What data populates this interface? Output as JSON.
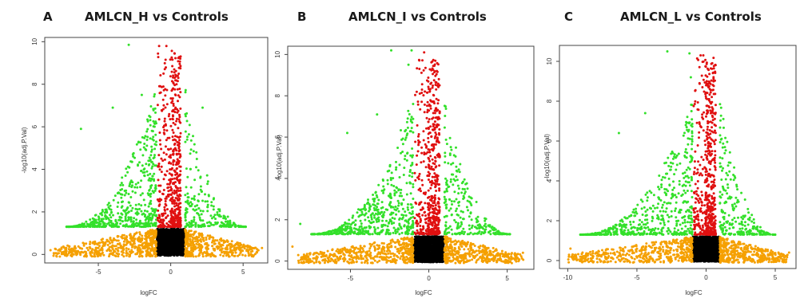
{
  "chart_data": [
    {
      "type": "scatter",
      "panel_letter": "A",
      "title": "AMLCN_H vs Controls",
      "xlabel": "logFC",
      "ylabel": "-log10(adj.P.Val)",
      "xlim": [
        -8.7,
        6.7
      ],
      "ylim": [
        -0.4,
        10.2
      ],
      "xticks": [
        -5,
        0,
        5
      ],
      "yticks": [
        0,
        2,
        4,
        6,
        8,
        10
      ],
      "grid": false,
      "legend": "none",
      "colors": {
        "black": "#000000",
        "orange": "#f5a000",
        "green": "#33e02a",
        "red": "#e01010"
      },
      "thresholds": {
        "logfc": 1,
        "neglog10p": 1.3
      },
      "sample_points": [
        [
          -2.9,
          9.85
        ],
        [
          -0.8,
          9.8
        ],
        [
          -0.3,
          9.8
        ],
        [
          -6.2,
          5.9
        ],
        [
          2.2,
          6.9
        ],
        [
          -4.0,
          6.9
        ],
        [
          -8.3,
          0.2
        ],
        [
          6.3,
          0.3
        ],
        [
          -2.0,
          7.5
        ],
        [
          -0.5,
          8.5
        ]
      ]
    },
    {
      "type": "scatter",
      "panel_letter": "B",
      "title": "AMLCN_I vs Controls",
      "xlabel": "logFC",
      "ylabel": "-log10(adj.P.Val)",
      "xlim": [
        -9.0,
        6.7
      ],
      "ylim": [
        -0.4,
        10.4
      ],
      "xticks": [
        -5,
        0,
        5
      ],
      "yticks": [
        0,
        2,
        4,
        6,
        8,
        10
      ],
      "grid": false,
      "legend": "none",
      "colors": {
        "black": "#000000",
        "orange": "#f5a000",
        "green": "#33e02a",
        "red": "#e01010"
      },
      "thresholds": {
        "logfc": 1,
        "neglog10p": 1.3
      },
      "sample_points": [
        [
          -2.4,
          10.2
        ],
        [
          -1.1,
          10.2
        ],
        [
          -0.3,
          10.1
        ],
        [
          -5.2,
          6.2
        ],
        [
          -3.3,
          7.1
        ],
        [
          -8.2,
          1.8
        ],
        [
          -8.7,
          0.7
        ],
        [
          6.0,
          0.4
        ],
        [
          -1.3,
          9.5
        ],
        [
          -0.6,
          9.3
        ]
      ]
    },
    {
      "type": "scatter",
      "panel_letter": "C",
      "title": "AMLCN_L vs Controls",
      "xlabel": "logFC",
      "ylabel": "-log10(adj.P.Val)",
      "xlim": [
        -10.6,
        6.5
      ],
      "ylim": [
        -0.4,
        10.8
      ],
      "xticks": [
        -10,
        -5,
        0,
        5
      ],
      "yticks": [
        0,
        2,
        4,
        6,
        8,
        10
      ],
      "grid": false,
      "legend": "none",
      "colors": {
        "black": "#000000",
        "orange": "#f5a000",
        "green": "#33e02a",
        "red": "#e01010"
      },
      "thresholds": {
        "logfc": 1,
        "neglog10p": 1.3
      },
      "sample_points": [
        [
          -2.8,
          10.5
        ],
        [
          -1.2,
          10.4
        ],
        [
          -0.2,
          10.3
        ],
        [
          -4.4,
          7.4
        ],
        [
          -6.3,
          6.4
        ],
        [
          -9.8,
          0.6
        ],
        [
          6.0,
          0.4
        ],
        [
          -1.1,
          9.2
        ],
        [
          -0.4,
          10.3
        ],
        [
          2.2,
          3.8
        ]
      ]
    }
  ]
}
